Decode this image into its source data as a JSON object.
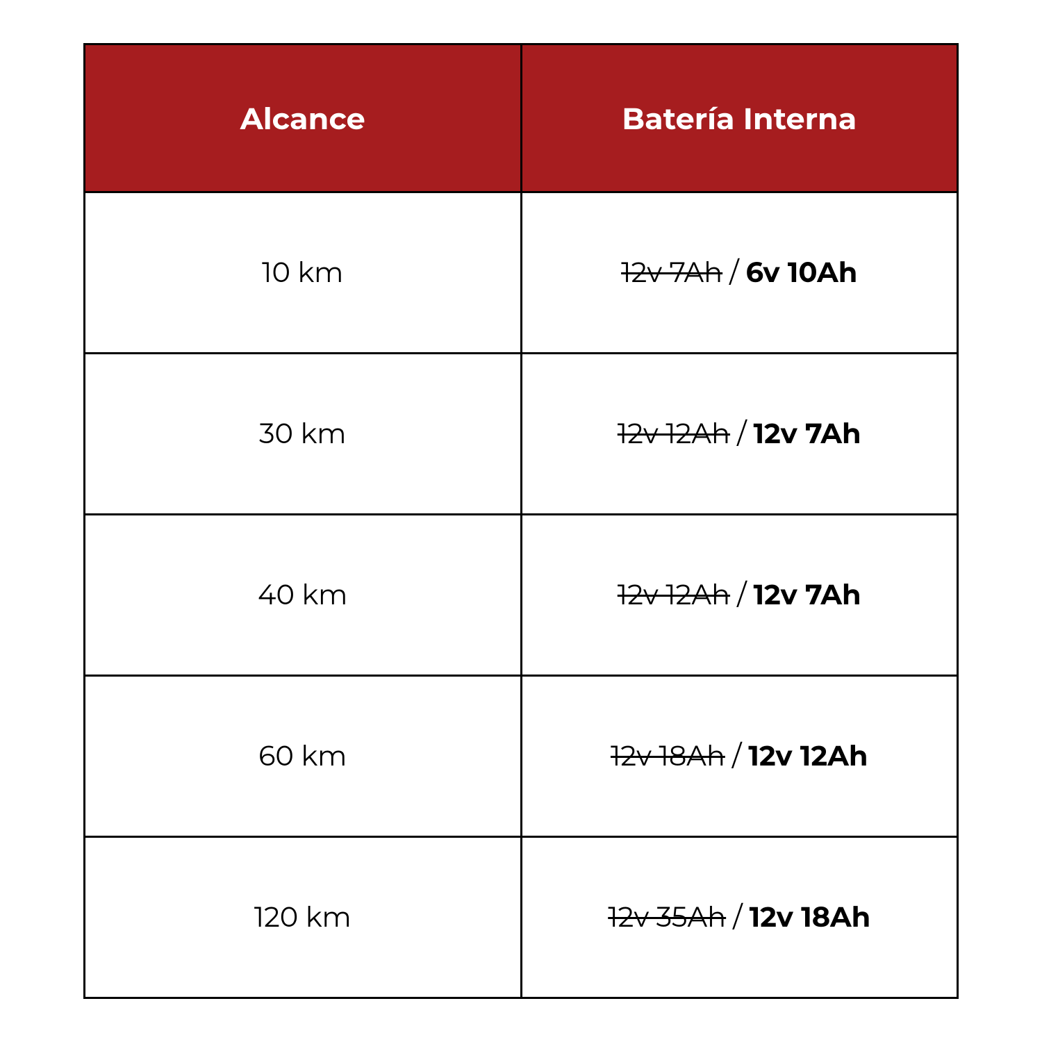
{
  "table": {
    "type": "table",
    "header_bg_color": "#a61d1f",
    "header_text_color": "#ffffff",
    "border_color": "#000000",
    "cell_bg_color": "#ffffff",
    "text_color": "#000000",
    "header_fontsize": 43,
    "cell_fontsize": 40,
    "border_width": 3,
    "columns": [
      {
        "label": "Alcance"
      },
      {
        "label": "Batería Interna"
      }
    ],
    "rows": [
      {
        "range": "10 km",
        "battery_old": "12v 7Ah",
        "battery_sep": " / ",
        "battery_new": "6v 10Ah"
      },
      {
        "range": "30 km",
        "battery_old": "12v 12Ah",
        "battery_sep": " / ",
        "battery_new": "12v 7Ah"
      },
      {
        "range": "40 km",
        "battery_old": "12v 12Ah",
        "battery_sep": " / ",
        "battery_new": "12v 7Ah"
      },
      {
        "range": "60 km",
        "battery_old": "12v 18Ah",
        "battery_sep": " / ",
        "battery_new": "12v 12Ah"
      },
      {
        "range": "120 km",
        "battery_old": "12v 35Ah",
        "battery_sep": " / ",
        "battery_new": "12v 18Ah"
      }
    ]
  }
}
